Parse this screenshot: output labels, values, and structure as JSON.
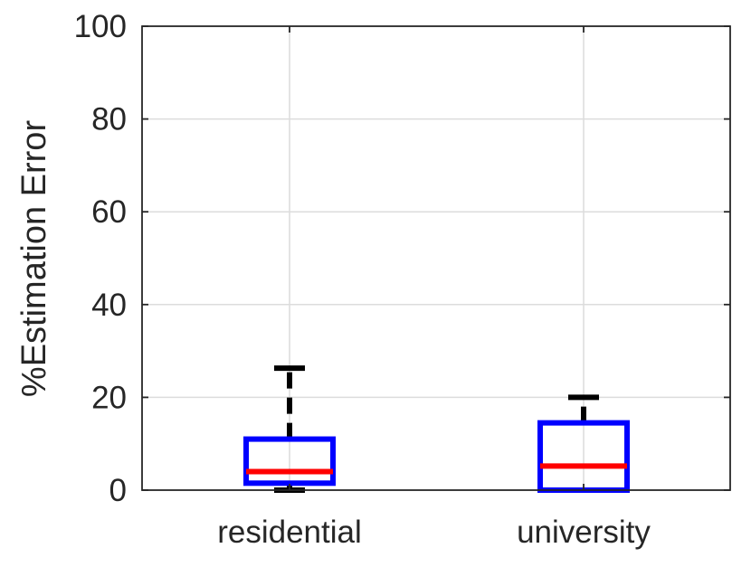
{
  "chart_data": {
    "type": "boxplot",
    "title": "",
    "xlabel": "",
    "ylabel": "%Estimation Error",
    "categories": [
      "residential",
      "university"
    ],
    "ylim": [
      0,
      100
    ],
    "yticks": [
      0,
      20,
      40,
      60,
      80,
      100
    ],
    "grid": true,
    "boxes": [
      {
        "category": "residential",
        "whisker_low": 0,
        "q1": 1.5,
        "median": 4,
        "q3": 11,
        "whisker_high": 26.3,
        "outliers": []
      },
      {
        "category": "university",
        "whisker_low": 0,
        "q1": 0,
        "median": 5.2,
        "q3": 14.5,
        "whisker_high": 20,
        "outliers": []
      }
    ],
    "colors": {
      "box": "#0000ff",
      "median": "#ff0000",
      "whisker": "#000000",
      "grid": "#dcdcdc",
      "axis": "#262626"
    }
  }
}
